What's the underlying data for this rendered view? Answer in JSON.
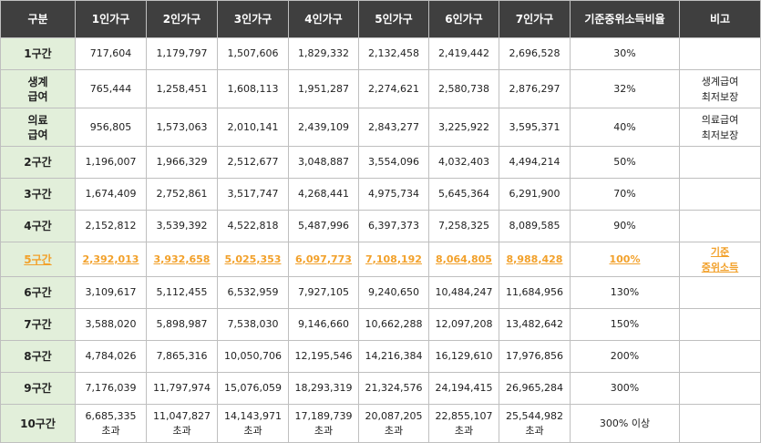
{
  "headers": [
    "구분",
    "1인가구",
    "2인가구",
    "3인가구",
    "4인가구",
    "5인가구",
    "6인가구",
    "7인가구",
    "기준중위소득비율",
    "비고"
  ],
  "rows": [
    {
      "label": "1구간",
      "values": [
        "717,604",
        "1,179,797",
        "1,507,606",
        "1,829,332",
        "2,132,458",
        "2,419,442",
        "2,696,528"
      ],
      "ratio": "30%",
      "note": ""
    },
    {
      "label": "생계\n급여",
      "values": [
        "765,444",
        "1,258,451",
        "1,608,113",
        "1,951,287",
        "2,274,621",
        "2,580,738",
        "2,876,297"
      ],
      "ratio": "32%",
      "note": "생계급여\n최저보장"
    },
    {
      "label": "의료\n급여",
      "values": [
        "956,805",
        "1,573,063",
        "2,010,141",
        "2,439,109",
        "2,843,277",
        "3,225,922",
        "3,595,371"
      ],
      "ratio": "40%",
      "note": "의료급여\n최저보장"
    },
    {
      "label": "2구간",
      "values": [
        "1,196,007",
        "1,966,329",
        "2,512,677",
        "3,048,887",
        "3,554,096",
        "4,032,403",
        "4,494,214"
      ],
      "ratio": "50%",
      "note": ""
    },
    {
      "label": "3구간",
      "values": [
        "1,674,409",
        "2,752,861",
        "3,517,747",
        "4,268,441",
        "4,975,734",
        "5,645,364",
        "6,291,900"
      ],
      "ratio": "70%",
      "note": ""
    },
    {
      "label": "4구간",
      "values": [
        "2,152,812",
        "3,539,392",
        "4,522,818",
        "5,487,996",
        "6,397,373",
        "7,258,325",
        "8,089,585"
      ],
      "ratio": "90%",
      "note": ""
    },
    {
      "label": "5구간",
      "values": [
        "2,392,013",
        "3,932,658",
        "5,025,353",
        "6,097,773",
        "7,108,192",
        "8,064,805",
        "8,988,428"
      ],
      "ratio": "100%",
      "note": "기준\n중위소득",
      "highlight": true
    },
    {
      "label": "6구간",
      "values": [
        "3,109,617",
        "5,112,455",
        "6,532,959",
        "7,927,105",
        "9,240,650",
        "10,484,247",
        "11,684,956"
      ],
      "ratio": "130%",
      "note": ""
    },
    {
      "label": "7구간",
      "values": [
        "3,588,020",
        "5,898,987",
        "7,538,030",
        "9,146,660",
        "10,662,288",
        "12,097,208",
        "13,482,642"
      ],
      "ratio": "150%",
      "note": ""
    },
    {
      "label": "8구간",
      "values": [
        "4,784,026",
        "7,865,316",
        "10,050,706",
        "12,195,546",
        "14,216,384",
        "16,129,610",
        "17,976,856"
      ],
      "ratio": "200%",
      "note": ""
    },
    {
      "label": "9구간",
      "values": [
        "7,176,039",
        "11,797,974",
        "15,076,059",
        "18,293,319",
        "21,324,576",
        "24,194,415",
        "26,965,284"
      ],
      "ratio": "300%",
      "note": ""
    },
    {
      "label": "10구간",
      "values": [
        "6,685,335\n초과",
        "11,047,827\n초과",
        "14,143,971\n초과",
        "17,189,739\n초과",
        "20,087,205\n초과",
        "22,855,107\n초과",
        "25,544,982\n초과"
      ],
      "ratio": "300% 이상",
      "note": ""
    }
  ],
  "colors": {
    "header_bg": "#3f3f3f",
    "label_bg": "#e2efda",
    "highlight": "#f2a12b"
  }
}
